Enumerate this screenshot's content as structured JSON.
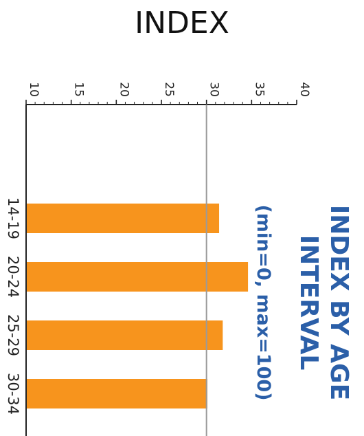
{
  "chart_data": {
    "type": "bar",
    "orientation": "vertical-text-rotated",
    "title": "INDEX BY AGE INTERVAL",
    "subtitle": "(min=0, max=100)",
    "axis_label": "INDEX",
    "categories": [
      "14-19",
      "20-24",
      "25-29",
      "30-34"
    ],
    "values": [
      31.4,
      34.6,
      31.8,
      30.1
    ],
    "value_axis": {
      "range": [
        10,
        40
      ],
      "ticks": [
        10,
        15,
        20,
        25,
        30,
        35,
        40
      ],
      "tick_labels": [
        "10",
        "15",
        "20",
        "25",
        "30",
        "35",
        "40"
      ],
      "reference_line": 30
    },
    "bar_color": "#f7941d",
    "title_color": "#2b5fa8",
    "reference_line_color": "#9a9a9a",
    "grid": false,
    "legend": "none"
  }
}
